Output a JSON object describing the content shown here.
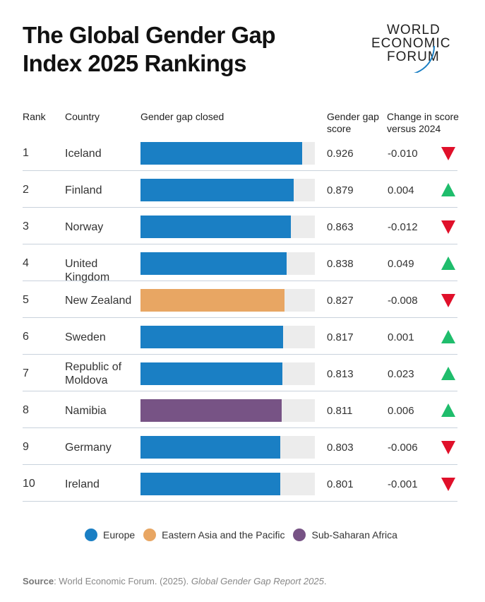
{
  "title": "The Global Gender Gap Index 2025 Rankings",
  "logo": [
    "WORLD",
    "ECONOMIC",
    "FORUM"
  ],
  "headers": {
    "rank": "Rank",
    "country": "Country",
    "bar": "Gender gap closed",
    "score": "Gender gap score",
    "change": "Change in score versus 2024"
  },
  "colors": {
    "Europe": "#1a7fc4",
    "Eastern Asia and the Pacific": "#e8a663",
    "Sub-Saharan Africa": "#775385",
    "track": "#ececec",
    "down": "#e0102a",
    "up": "#1fbd6c"
  },
  "chart_data": {
    "type": "bar",
    "xlim": [
      0,
      1
    ],
    "rows": [
      {
        "rank": "1",
        "country": "Iceland",
        "region": "Europe",
        "score": "0.926",
        "value": 0.926,
        "change": "-0.010",
        "direction": "down"
      },
      {
        "rank": "2",
        "country": "Finland",
        "region": "Europe",
        "score": "0.879",
        "value": 0.879,
        "change": "0.004",
        "direction": "up"
      },
      {
        "rank": "3",
        "country": "Norway",
        "region": "Europe",
        "score": "0.863",
        "value": 0.863,
        "change": "-0.012",
        "direction": "down"
      },
      {
        "rank": "4",
        "country": "United Kingdom",
        "region": "Europe",
        "score": "0.838",
        "value": 0.838,
        "change": "0.049",
        "direction": "up"
      },
      {
        "rank": "5",
        "country": "New Zealand",
        "region": "Eastern Asia and the Pacific",
        "score": "0.827",
        "value": 0.827,
        "change": "-0.008",
        "direction": "down"
      },
      {
        "rank": "6",
        "country": "Sweden",
        "region": "Europe",
        "score": "0.817",
        "value": 0.817,
        "change": "0.001",
        "direction": "up"
      },
      {
        "rank": "7",
        "country": "Republic of Moldova",
        "region": "Europe",
        "score": "0.813",
        "value": 0.813,
        "change": "0.023",
        "direction": "up"
      },
      {
        "rank": "8",
        "country": "Namibia",
        "region": "Sub-Saharan Africa",
        "score": "0.811",
        "value": 0.811,
        "change": "0.006",
        "direction": "up"
      },
      {
        "rank": "9",
        "country": "Germany",
        "region": "Europe",
        "score": "0.803",
        "value": 0.803,
        "change": "-0.006",
        "direction": "down"
      },
      {
        "rank": "10",
        "country": "Ireland",
        "region": "Europe",
        "score": "0.801",
        "value": 0.801,
        "change": "-0.001",
        "direction": "down"
      }
    ],
    "legend": [
      "Europe",
      "Eastern Asia and the Pacific",
      "Sub-Saharan Africa"
    ]
  },
  "source": {
    "label": "Source",
    "text": ": World Economic Forum. (2025). ",
    "italic": "Global Gender Gap Report 2025",
    "end": "."
  }
}
